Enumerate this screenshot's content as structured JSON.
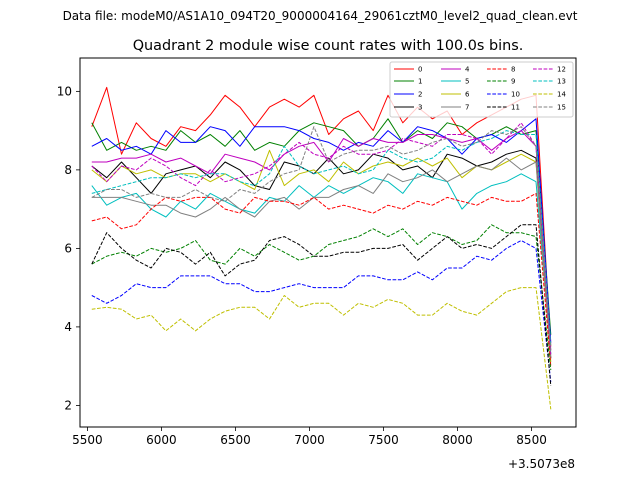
{
  "suptitle": "Data file: modeM0/AS1A10_094T20_9000004164_29061cztM0_level2_quad_clean.evt",
  "chart_data": {
    "type": "line",
    "title": "Quadrant 2 module wise count rates with 100.0s bins.",
    "xlabel": "",
    "ylabel": "",
    "x_offset_label": "+3.5073e8",
    "xlim": [
      5450,
      8800
    ],
    "ylim": [
      1.45,
      10.85
    ],
    "x_ticks": [
      5500,
      6000,
      6500,
      7000,
      7500,
      8000,
      8500
    ],
    "y_ticks": [
      2,
      4,
      6,
      8,
      10
    ],
    "legend_position": "top-right",
    "legend_columns": 4,
    "x": [
      5530,
      5630,
      5730,
      5830,
      5930,
      6030,
      6130,
      6230,
      6330,
      6430,
      6530,
      6630,
      6730,
      6830,
      6930,
      7030,
      7130,
      7230,
      7330,
      7430,
      7530,
      7630,
      7730,
      7830,
      7930,
      8030,
      8130,
      8230,
      8330,
      8430,
      8530,
      8630
    ],
    "series": [
      {
        "name": "0",
        "color": "#ff0000",
        "dash": "solid",
        "values": [
          9.1,
          10.1,
          8.4,
          9.2,
          8.8,
          8.6,
          9.1,
          9.0,
          9.4,
          9.9,
          9.6,
          9.1,
          9.6,
          9.8,
          9.6,
          9.9,
          8.9,
          9.3,
          9.5,
          9.0,
          9.9,
          9.2,
          9.6,
          9.3,
          9.5,
          8.9,
          9.2,
          9.4,
          9.6,
          9.8,
          9.9,
          3.5
        ]
      },
      {
        "name": "1",
        "color": "#008000",
        "dash": "solid",
        "values": [
          9.2,
          8.5,
          8.7,
          8.5,
          8.6,
          8.5,
          9.0,
          8.7,
          8.9,
          8.6,
          9.0,
          8.5,
          8.7,
          8.6,
          9.0,
          9.2,
          9.1,
          9.0,
          8.6,
          8.8,
          9.3,
          8.7,
          9.0,
          8.8,
          9.2,
          9.1,
          8.8,
          8.9,
          9.1,
          8.9,
          9.0,
          3.8
        ]
      },
      {
        "name": "2",
        "color": "#0000ff",
        "dash": "solid",
        "values": [
          8.6,
          8.8,
          8.5,
          8.6,
          8.4,
          9.0,
          8.7,
          8.7,
          9.1,
          9.0,
          8.6,
          9.1,
          9.1,
          9.1,
          9.0,
          8.8,
          8.7,
          8.5,
          8.7,
          8.6,
          9.0,
          8.7,
          9.1,
          9.0,
          8.8,
          8.4,
          8.8,
          8.9,
          8.7,
          9.0,
          9.3,
          3.6
        ]
      },
      {
        "name": "3",
        "color": "#000000",
        "dash": "solid",
        "values": [
          8.1,
          7.8,
          8.2,
          7.8,
          7.4,
          7.9,
          8.0,
          8.1,
          7.8,
          8.2,
          8.0,
          7.6,
          7.5,
          8.2,
          8.1,
          7.9,
          8.3,
          7.9,
          8.0,
          8.4,
          8.3,
          8.0,
          8.1,
          7.8,
          8.4,
          8.3,
          8.1,
          8.2,
          8.4,
          8.5,
          8.3,
          3.2
        ]
      },
      {
        "name": "4",
        "color": "#bf00bf",
        "dash": "solid",
        "values": [
          8.2,
          8.2,
          8.3,
          8.3,
          8.4,
          8.2,
          8.3,
          8.1,
          7.9,
          8.4,
          8.3,
          8.2,
          8.0,
          8.4,
          8.6,
          8.7,
          8.2,
          8.8,
          8.6,
          8.8,
          8.7,
          8.7,
          8.9,
          8.9,
          8.8,
          8.7,
          8.8,
          8.5,
          8.8,
          9.0,
          8.6,
          3.4
        ]
      },
      {
        "name": "5",
        "color": "#00bfbf",
        "dash": "solid",
        "values": [
          7.6,
          7.1,
          7.3,
          7.4,
          7.0,
          6.8,
          7.2,
          7.0,
          7.4,
          7.2,
          7.0,
          6.9,
          7.3,
          7.2,
          7.6,
          7.3,
          7.6,
          7.4,
          7.6,
          7.8,
          7.7,
          7.4,
          7.9,
          7.8,
          7.7,
          7.0,
          7.4,
          7.6,
          7.7,
          7.9,
          7.7,
          3.3
        ]
      },
      {
        "name": "6",
        "color": "#bfbf00",
        "dash": "solid",
        "values": [
          8.0,
          7.7,
          8.1,
          7.9,
          8.0,
          7.8,
          7.9,
          7.9,
          7.7,
          7.9,
          7.7,
          7.5,
          8.5,
          7.6,
          7.9,
          8.0,
          7.7,
          8.2,
          7.9,
          8.1,
          8.2,
          8.1,
          8.3,
          8.1,
          8.3,
          7.8,
          8.1,
          8.0,
          8.2,
          8.4,
          8.2,
          3.1
        ]
      },
      {
        "name": "7",
        "color": "#808080",
        "dash": "solid",
        "values": [
          7.3,
          7.3,
          7.3,
          7.2,
          7.1,
          7.1,
          6.9,
          6.8,
          7.0,
          7.3,
          7.0,
          6.8,
          7.2,
          7.3,
          7.0,
          7.3,
          7.3,
          7.5,
          7.6,
          7.4,
          7.9,
          7.7,
          7.8,
          8.0,
          7.7,
          7.9,
          8.1,
          8.0,
          8.3,
          8.0,
          8.2,
          3.2
        ]
      },
      {
        "name": "8",
        "color": "#ff0000",
        "dash": "dashed",
        "values": [
          6.7,
          6.8,
          6.5,
          6.6,
          7.0,
          7.3,
          7.2,
          7.3,
          7.3,
          7.0,
          6.9,
          7.3,
          7.2,
          7.2,
          7.1,
          7.3,
          7.0,
          7.1,
          7.0,
          6.9,
          7.1,
          7.0,
          7.2,
          7.1,
          7.3,
          7.2,
          7.1,
          7.3,
          7.2,
          7.2,
          7.4,
          3.0
        ]
      },
      {
        "name": "9",
        "color": "#008000",
        "dash": "dashed",
        "values": [
          5.6,
          5.8,
          5.9,
          5.8,
          6.0,
          5.9,
          6.0,
          6.2,
          5.7,
          5.6,
          6.0,
          5.8,
          6.1,
          5.9,
          5.7,
          5.8,
          6.1,
          6.2,
          6.3,
          6.5,
          6.3,
          6.5,
          6.1,
          6.4,
          6.3,
          6.1,
          6.2,
          6.6,
          6.4,
          6.4,
          6.3,
          2.9
        ]
      },
      {
        "name": "10",
        "color": "#0000ff",
        "dash": "dashed",
        "values": [
          4.8,
          4.6,
          4.8,
          5.1,
          5.0,
          5.0,
          5.3,
          5.3,
          5.3,
          5.1,
          5.1,
          4.9,
          4.9,
          5.0,
          5.1,
          5.0,
          5.0,
          5.0,
          5.3,
          5.3,
          5.2,
          5.2,
          5.4,
          5.2,
          5.5,
          5.5,
          5.8,
          5.7,
          6.0,
          6.2,
          6.0,
          2.6
        ]
      },
      {
        "name": "11",
        "color": "#000000",
        "dash": "dashed",
        "values": [
          5.6,
          6.4,
          6.0,
          5.7,
          5.5,
          6.0,
          5.9,
          5.6,
          5.9,
          5.3,
          5.6,
          5.7,
          6.2,
          6.3,
          6.1,
          5.8,
          5.8,
          5.9,
          5.9,
          6.0,
          6.0,
          6.1,
          5.7,
          6.0,
          6.3,
          6.0,
          6.1,
          6.0,
          6.3,
          6.6,
          6.6,
          2.5
        ]
      },
      {
        "name": "12",
        "color": "#bf00bf",
        "dash": "dashed",
        "values": [
          8.1,
          7.7,
          8.1,
          8.0,
          8.3,
          8.1,
          7.8,
          7.6,
          8.0,
          7.7,
          7.8,
          7.9,
          8.1,
          8.4,
          8.7,
          8.4,
          8.3,
          8.6,
          8.4,
          8.4,
          8.5,
          8.8,
          8.7,
          8.6,
          8.9,
          8.9,
          8.8,
          8.4,
          8.8,
          9.2,
          8.6,
          3.3
        ]
      },
      {
        "name": "13",
        "color": "#00bfbf",
        "dash": "dashed",
        "values": [
          7.4,
          7.5,
          7.6,
          7.7,
          7.8,
          7.8,
          7.9,
          7.8,
          7.9,
          7.9,
          7.7,
          7.6,
          7.9,
          8.6,
          8.1,
          7.9,
          8.0,
          8.1,
          7.9,
          8.0,
          8.5,
          8.3,
          8.2,
          8.3,
          8.6,
          8.5,
          8.7,
          8.8,
          9.0,
          8.9,
          8.9,
          3.5
        ]
      },
      {
        "name": "14",
        "color": "#bfbf00",
        "dash": "dashed",
        "values": [
          4.45,
          4.5,
          4.45,
          4.2,
          4.3,
          3.9,
          4.2,
          3.9,
          4.2,
          4.4,
          4.5,
          4.5,
          4.2,
          4.8,
          4.5,
          4.6,
          4.6,
          4.3,
          4.6,
          4.5,
          4.7,
          4.6,
          4.3,
          4.3,
          4.6,
          4.4,
          4.3,
          4.6,
          4.9,
          5.0,
          5.0,
          1.9
        ]
      },
      {
        "name": "15",
        "color": "#808080",
        "dash": "dashed",
        "values": [
          7.3,
          7.5,
          7.5,
          7.3,
          7.4,
          7.3,
          7.3,
          7.5,
          7.3,
          7.2,
          7.5,
          7.4,
          7.7,
          7.9,
          8.0,
          9.1,
          8.2,
          8.4,
          8.5,
          8.5,
          8.6,
          8.4,
          8.5,
          8.7,
          8.8,
          8.6,
          8.7,
          9.0,
          8.9,
          9.1,
          8.6,
          3.4
        ]
      }
    ]
  }
}
